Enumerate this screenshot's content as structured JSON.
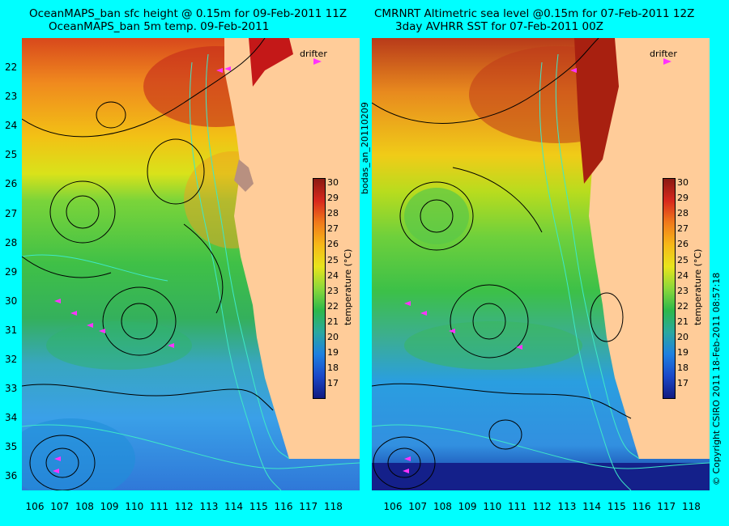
{
  "titles": {
    "left_line1": "OceanMAPS_ban sfc height @ 0.15m for 09-Feb-2011 11Z",
    "left_line2": "OceanMAPS_ban 5m temp. 09-Feb-2011",
    "right_line1": "CMRNRT Altimetric sea level  @0.15m  for 07-Feb-2011 12Z",
    "right_line2": "3day AVHRR SST for 07-Feb-2011 00Z"
  },
  "side_labels": {
    "middle": "bodas_an_20110209",
    "right": "© Copyright CSIRO 2011   18-Feb-2011 08:57:18"
  },
  "legend": {
    "drifter": "drifter",
    "colorbar_label": "temperature (°C)",
    "colorbar_ticks": [
      "30",
      "29",
      "28",
      "27",
      "26",
      "25",
      "24",
      "23",
      "22",
      "21",
      "20",
      "19",
      "18",
      "17"
    ]
  },
  "axes": {
    "lat_ticks": [
      "22",
      "23",
      "24",
      "25",
      "26",
      "27",
      "28",
      "29",
      "30",
      "31",
      "32",
      "33",
      "34",
      "35",
      "36"
    ],
    "lon_ticks": [
      "106",
      "107",
      "108",
      "109",
      "110",
      "111",
      "112",
      "113",
      "114",
      "115",
      "116",
      "117",
      "118"
    ]
  },
  "colors": {
    "background": "#00ffff",
    "land": "#ffcc99",
    "drifter": "#ff33ff",
    "contour": "#000000",
    "isobath": "#3ee8c8"
  }
}
